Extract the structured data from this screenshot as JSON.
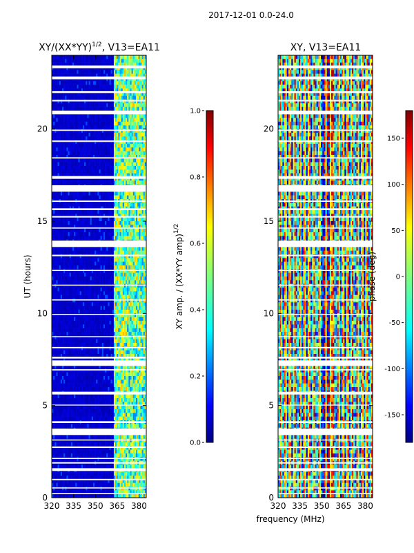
{
  "header": {
    "suptitle": "2017-12-01 0.0-24.0"
  },
  "chart_data": [
    {
      "type": "heatmap",
      "title_base": "XY/(XX*YY)",
      "title_exponent": "1/2",
      "title_suffix": ", V13=EA11",
      "xlabel": "",
      "ylabel": "UT (hours)",
      "xlim": [
        320,
        385
      ],
      "ylim": [
        0,
        24
      ],
      "xticks": [
        320,
        335,
        350,
        365,
        380
      ],
      "yticks": [
        0,
        5,
        10,
        15,
        20
      ],
      "colorbar": {
        "label_base": "XY amp. / (XX*YY amp)",
        "label_exponent": "1/2",
        "range": [
          0.0,
          1.0
        ],
        "ticks": [
          "0.0",
          "0.2",
          "0.4",
          "0.6",
          "0.8",
          "1.0"
        ],
        "tick_values": [
          0.0,
          0.2,
          0.4,
          0.6,
          0.8,
          1.0
        ]
      }
    },
    {
      "type": "heatmap",
      "title": "XY, V13=EA11",
      "xlabel": "frequency (MHz)",
      "ylabel": "",
      "xlim": [
        320,
        385
      ],
      "ylim": [
        0,
        24
      ],
      "xticks": [
        320,
        335,
        350,
        365,
        380
      ],
      "yticks": [
        0,
        5,
        10,
        15,
        20
      ],
      "colorbar": {
        "label": "phase (deg)",
        "range": [
          -180,
          180
        ],
        "ticks": [
          "-150",
          "-100",
          "-50",
          "0",
          "50",
          "100",
          "150"
        ],
        "tick_values": [
          -150,
          -100,
          -50,
          0,
          50,
          100,
          150
        ]
      }
    }
  ],
  "gaps_ut_hours": [
    [
      23.3,
      23.45
    ],
    [
      22.7,
      22.85
    ],
    [
      21.95,
      22.05
    ],
    [
      21.5,
      21.58
    ],
    [
      20.8,
      21.0
    ],
    [
      19.9,
      19.97
    ],
    [
      19.3,
      19.38
    ],
    [
      18.4,
      18.47
    ],
    [
      17.3,
      17.45
    ],
    [
      16.6,
      16.95
    ],
    [
      16.05,
      16.12
    ],
    [
      15.6,
      15.7
    ],
    [
      15.2,
      15.28
    ],
    [
      14.6,
      14.66
    ],
    [
      13.6,
      13.95
    ],
    [
      13.1,
      13.18
    ],
    [
      12.3,
      12.36
    ],
    [
      11.5,
      11.56
    ],
    [
      10.7,
      10.76
    ],
    [
      9.9,
      9.96
    ],
    [
      8.7,
      8.76
    ],
    [
      8.1,
      8.18
    ],
    [
      7.55,
      7.65
    ],
    [
      7.15,
      7.45
    ],
    [
      6.9,
      6.97
    ],
    [
      5.6,
      5.75
    ],
    [
      5.0,
      5.05
    ],
    [
      4.05,
      4.15
    ],
    [
      3.4,
      3.75
    ],
    [
      3.1,
      3.16
    ],
    [
      2.7,
      2.78
    ],
    [
      2.1,
      2.16
    ],
    [
      1.85,
      1.93
    ],
    [
      1.45,
      1.6
    ],
    [
      0.95,
      1.02
    ],
    [
      0.5,
      0.56
    ],
    [
      0.2,
      0.26
    ]
  ],
  "colors": {
    "jet": [
      "#00007f",
      "#0000ff",
      "#007fff",
      "#00ffff",
      "#7fff7f",
      "#ffff00",
      "#ff7f00",
      "#ff0000",
      "#7f0000"
    ],
    "gap": "#ffffff",
    "axis": "#000000"
  }
}
